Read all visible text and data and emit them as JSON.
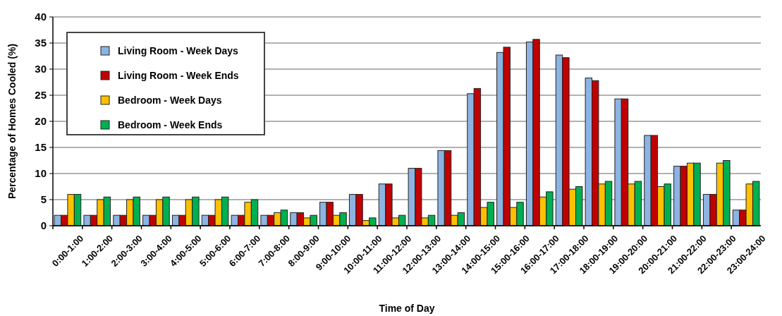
{
  "chart_data": {
    "type": "bar",
    "xlabel": "Time of Day",
    "ylabel": "Percentage of Homes Cooled (%)",
    "categories": [
      "0:00-1:00",
      "1:00-2:00",
      "2:00-3:00",
      "3:00-4:00",
      "4:00-5:00",
      "5:00-6:00",
      "6:00-7:00",
      "7:00-8:00",
      "8:00-9:00",
      "9:00-10:00",
      "10:00-11:00",
      "11:00-12:00",
      "12:00-13:00",
      "13:00-14:00",
      "14:00-15:00",
      "15:00-16:00",
      "16:00-17:00",
      "17:00-18:00",
      "18:00-19:00",
      "19:00-20:00",
      "20:00-21:00",
      "21:00-22:00",
      "22:00-23:00",
      "23:00-24:00"
    ],
    "series": [
      {
        "name": "Living Room - Week Days",
        "color": "#8db3e2",
        "values": [
          2,
          2,
          2,
          2,
          2,
          2,
          2,
          2,
          2.5,
          4.5,
          6,
          8,
          11,
          14.4,
          25.3,
          33.2,
          35.2,
          32.7,
          28.3,
          24.3,
          17.3,
          11.4,
          6,
          3
        ]
      },
      {
        "name": "Living Room - Week Ends",
        "color": "#c00000",
        "values": [
          2,
          2,
          2,
          2,
          2,
          2,
          2,
          2,
          2.5,
          4.5,
          6,
          8,
          11,
          14.4,
          26.3,
          34.2,
          35.7,
          32.2,
          27.8,
          24.3,
          17.3,
          11.4,
          6,
          3
        ]
      },
      {
        "name": "Bedroom - Week Days",
        "color": "#ffc000",
        "values": [
          6,
          5,
          5,
          5,
          5,
          5,
          4.5,
          2.5,
          1.5,
          2,
          1,
          1.5,
          1.5,
          2,
          3.5,
          3.5,
          5.5,
          7,
          8,
          8,
          7.5,
          12,
          12,
          8
        ]
      },
      {
        "name": "Bedroom - Week Ends",
        "color": "#00b050",
        "values": [
          6,
          5.5,
          5.5,
          5.5,
          5.5,
          5.5,
          5,
          3,
          2,
          2.5,
          1.5,
          2,
          2,
          2.5,
          4.5,
          4.5,
          6.5,
          7.5,
          8.5,
          8.5,
          8,
          12,
          12.5,
          8.5
        ]
      }
    ],
    "ylim": [
      0,
      40
    ],
    "yticks": [
      0,
      5,
      10,
      15,
      20,
      25,
      30,
      35,
      40
    ],
    "grid": "y",
    "legend": "top left"
  }
}
